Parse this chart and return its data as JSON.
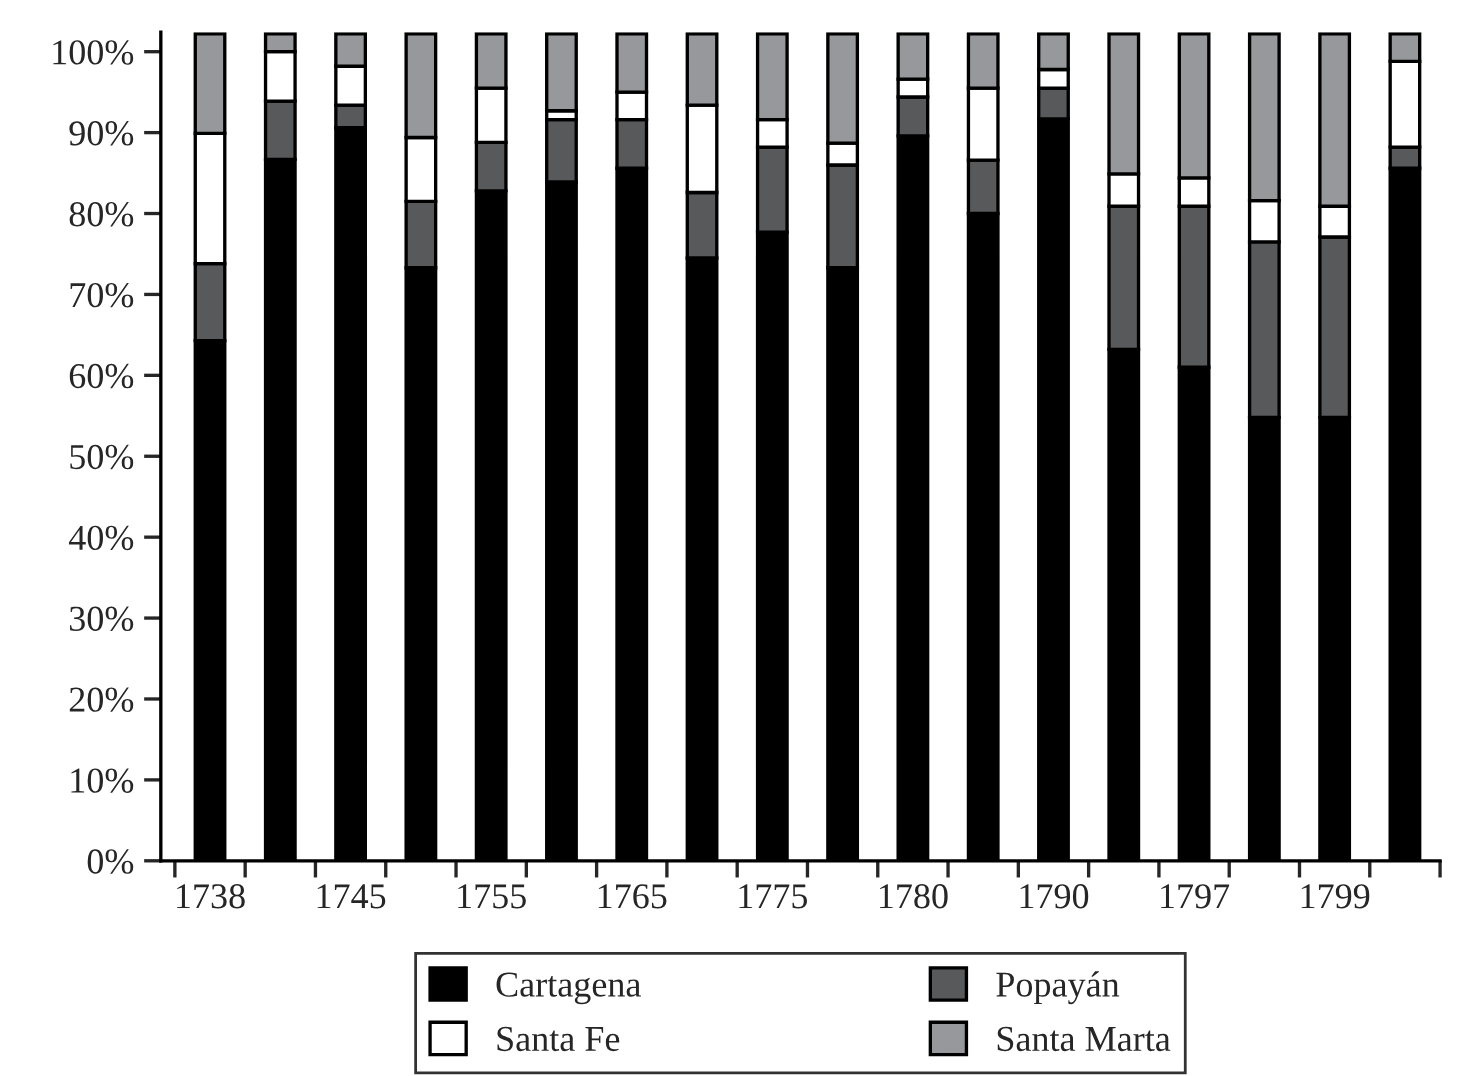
{
  "chart_data": {
    "type": "bar",
    "stacked": true,
    "categories": [
      "1738",
      null,
      "1745",
      null,
      "1755",
      null,
      "1765",
      null,
      "1775",
      null,
      "1780",
      null,
      "1790",
      null,
      "1797",
      null,
      "1799",
      null
    ],
    "series": [
      {
        "name": "Cartagena",
        "color": "#000000",
        "values": [
          64.3,
          86.7,
          90.6,
          73.3,
          82.8,
          83.9,
          85.6,
          74.5,
          77.7,
          73.3,
          89.6,
          80.0,
          91.7,
          63.2,
          61.0,
          54.8,
          54.8,
          85.6
        ]
      },
      {
        "name": "Popayán",
        "color": "#58595b",
        "values": [
          9.5,
          7.2,
          2.8,
          8.2,
          6.0,
          7.7,
          6.0,
          8.1,
          10.5,
          12.7,
          4.8,
          6.6,
          3.8,
          17.7,
          19.9,
          21.7,
          22.3,
          2.6
        ]
      },
      {
        "name": "Santa Fe",
        "color": "#ffffff",
        "values": [
          16.1,
          6.1,
          4.8,
          7.9,
          6.7,
          1.1,
          3.4,
          10.8,
          3.4,
          2.7,
          2.2,
          8.9,
          2.3,
          4.0,
          3.5,
          5.1,
          3.8,
          10.6
        ]
      },
      {
        "name": "Santa Marta",
        "color": "#97989b",
        "values": [
          12.3,
          2.2,
          4.0,
          12.8,
          6.7,
          9.5,
          7.2,
          8.8,
          10.6,
          13.5,
          5.6,
          6.7,
          4.4,
          17.3,
          17.8,
          20.6,
          21.3,
          3.4
        ]
      }
    ],
    "ylim": [
      0,
      102.4
    ],
    "yticks": [
      {
        "value": 0,
        "label": "0%"
      },
      {
        "value": 10,
        "label": "10%"
      },
      {
        "value": 20,
        "label": "20%"
      },
      {
        "value": 30,
        "label": "30%"
      },
      {
        "value": 40,
        "label": "40%"
      },
      {
        "value": 50,
        "label": "50%"
      },
      {
        "value": 60,
        "label": "60%"
      },
      {
        "value": 70,
        "label": "70%"
      },
      {
        "value": 80,
        "label": "80%"
      },
      {
        "value": 90,
        "label": "90%"
      },
      {
        "value": 100,
        "label": "100%"
      }
    ],
    "legend": "bottom",
    "grid": false
  }
}
